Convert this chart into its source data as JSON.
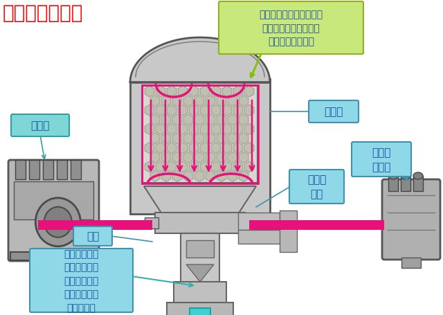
{
  "title": "工作原理（一）",
  "title_color": "#ff0000",
  "title_fontsize": 20,
  "bg_color": "#ffffff",
  "labels": {
    "kongyaji": "空压机",
    "ganzongtong": "干燥筒",
    "tongdao": "通道",
    "dakaidanxiangfa": "打开单\n向阀",
    "sihuilu": "四回路\n保护阀",
    "annotation1": "当空气流经颗粒干燥筒，\n水份被脱掉并滞留在颗\n粒干燥筒的上层。",
    "annotation2": "由于温度下降\n，会产生冷凝\n水，冷凝水经\n过通道到出口\n的阀门处。"
  },
  "box_colors": {
    "kongyaji_bg": "#7fd6d6",
    "ganzongtong_bg": "#8ed8e8",
    "tongdao_bg": "#8ed8e8",
    "dakaidanxiangfa_bg": "#8ed8e8",
    "sihuilu_bg": "#8ed8e8",
    "annotation1_bg": "#c8e87c",
    "annotation2_bg": "#8ed8e8"
  },
  "text_color": "#1a4fa0",
  "arrow_color_green": "#80c000",
  "arrow_color_pink": "#e8107a",
  "arrow_color_cyan": "#40d0d0",
  "pipe_color": "#e8107a",
  "figsize": [
    6.4,
    4.56
  ],
  "dpi": 100
}
